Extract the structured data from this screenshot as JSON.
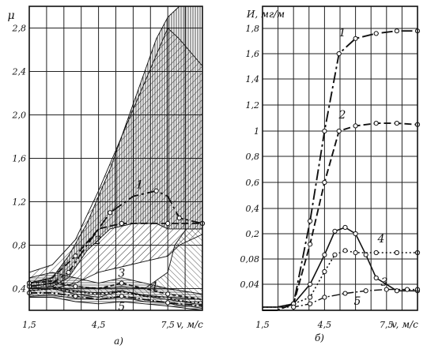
{
  "chart_data": [
    {
      "id": "a",
      "type": "line",
      "panel_label": "а)",
      "ylabel": "μ",
      "xlabel": "v, м/с",
      "ylim": [
        0.2,
        3.0
      ],
      "xlim": [
        1.5,
        9.0
      ],
      "x_ticks": [
        {
          "v": 1.5,
          "label": "1,5"
        },
        {
          "v": 4.5,
          "label": "4,5"
        },
        {
          "v": 7.5,
          "label": "7,5"
        }
      ],
      "y_ticks": [
        {
          "v": 0.4,
          "label": "0,4"
        },
        {
          "v": 0.8,
          "label": "0,8"
        },
        {
          "v": 1.2,
          "label": "1,2"
        },
        {
          "v": 1.6,
          "label": "1,6"
        },
        {
          "v": 2.0,
          "label": "2,0"
        },
        {
          "v": 2.4,
          "label": "2,4"
        },
        {
          "v": 2.8,
          "label": "2,8"
        }
      ],
      "grid": true,
      "series": [
        {
          "name": "1",
          "x": [
            1.5,
            2.5,
            3.2,
            4.0,
            5.0,
            6.0,
            7.0,
            7.5,
            8.0,
            9.0
          ],
          "upper": [
            0.45,
            0.5,
            0.7,
            1.0,
            1.5,
            2.1,
            2.7,
            2.9,
            3.0,
            3.0
          ],
          "mean": [
            0.42,
            0.45,
            0.55,
            0.8,
            1.1,
            1.25,
            1.3,
            1.25,
            1.05,
            1.0
          ],
          "lower": [
            0.4,
            0.42,
            0.5,
            0.75,
            0.95,
            1.0,
            1.0,
            0.95,
            0.95,
            0.95
          ]
        },
        {
          "name": "2",
          "x": [
            1.5,
            2.5,
            3.5,
            4.5,
            5.5,
            6.5,
            7.5,
            8.0,
            9.0
          ],
          "upper": [
            0.55,
            0.62,
            0.85,
            1.3,
            1.8,
            2.3,
            2.8,
            2.7,
            2.45
          ],
          "mean": [
            0.45,
            0.5,
            0.7,
            0.95,
            1.0,
            1.0,
            1.0,
            1.0,
            1.0
          ],
          "lower": [
            0.38,
            0.4,
            0.45,
            0.55,
            0.6,
            0.65,
            0.7,
            0.8,
            0.9
          ]
        },
        {
          "name": "3",
          "x": [
            1.5,
            2.5,
            3.5,
            4.5,
            5.5,
            6.5,
            7.5,
            9.0
          ],
          "upper": [
            0.5,
            0.55,
            0.5,
            0.45,
            0.5,
            0.45,
            0.4,
            0.35
          ],
          "mean": [
            0.45,
            0.47,
            0.42,
            0.4,
            0.45,
            0.4,
            0.35,
            0.3
          ],
          "lower": [
            0.4,
            0.4,
            0.35,
            0.32,
            0.38,
            0.33,
            0.3,
            0.25
          ]
        },
        {
          "name": "4",
          "x": [
            1.5,
            2.5,
            3.5,
            4.5,
            5.5,
            6.5,
            7.5,
            7.8,
            8.3,
            9.0
          ],
          "upper": [
            0.42,
            0.45,
            0.42,
            0.4,
            0.42,
            0.4,
            0.55,
            0.8,
            0.95,
            0.95
          ],
          "mean": [
            0.38,
            0.4,
            0.37,
            0.35,
            0.37,
            0.33,
            0.32,
            0.3,
            0.28,
            0.27
          ],
          "lower": [
            0.33,
            0.34,
            0.31,
            0.3,
            0.32,
            0.28,
            0.27,
            0.25,
            0.24,
            0.22
          ]
        },
        {
          "name": "5",
          "x": [
            1.5,
            2.5,
            3.5,
            4.5,
            5.5,
            6.5,
            7.5,
            9.0
          ],
          "upper": [
            0.4,
            0.42,
            0.38,
            0.36,
            0.38,
            0.34,
            0.32,
            0.3
          ],
          "mean": [
            0.36,
            0.36,
            0.33,
            0.3,
            0.33,
            0.3,
            0.27,
            0.24
          ],
          "lower": [
            0.32,
            0.32,
            0.28,
            0.26,
            0.28,
            0.26,
            0.24,
            0.2
          ]
        }
      ]
    },
    {
      "id": "b",
      "type": "line",
      "panel_label": "б)",
      "ylabel": "И, мг/м",
      "xlabel": "v, м/с",
      "xlim": [
        1.5,
        9.0
      ],
      "x_ticks": [
        {
          "v": 1.5,
          "label": "1,5"
        },
        {
          "v": 4.5,
          "label": "4,5"
        },
        {
          "v": 7.5,
          "label": "7,5"
        }
      ],
      "y_ticks": [
        {
          "v": 0.04,
          "label": "0,04"
        },
        {
          "v": 0.08,
          "label": "0,08"
        },
        {
          "v": 0.2,
          "label": "0,2"
        },
        {
          "v": 0.4,
          "label": "0,4"
        },
        {
          "v": 0.6,
          "label": "0,6"
        },
        {
          "v": 0.8,
          "label": "0,8"
        },
        {
          "v": 1.0,
          "label": "1"
        },
        {
          "v": 1.2,
          "label": "1,2"
        },
        {
          "v": 1.4,
          "label": "1,4"
        },
        {
          "v": 1.6,
          "label": "1,6"
        },
        {
          "v": 1.8,
          "label": "1,8"
        }
      ],
      "grid": true,
      "series": [
        {
          "name": "1",
          "x": [
            1.5,
            2.2,
            3.0,
            3.8,
            4.5,
            5.2,
            6.0,
            7.0,
            8.0,
            9.0
          ],
          "y": [
            0.0,
            0.0,
            0.01,
            0.3,
            1.0,
            1.6,
            1.72,
            1.76,
            1.78,
            1.78
          ]
        },
        {
          "name": "2",
          "x": [
            1.5,
            2.2,
            3.0,
            3.8,
            4.5,
            5.2,
            6.0,
            7.0,
            8.0,
            9.0
          ],
          "y": [
            0.0,
            0.0,
            0.01,
            0.15,
            0.6,
            1.0,
            1.04,
            1.06,
            1.06,
            1.05
          ]
        },
        {
          "name": "3",
          "x": [
            1.5,
            2.2,
            3.0,
            3.8,
            4.5,
            5.0,
            5.5,
            6.0,
            6.5,
            7.0,
            8.0,
            9.0
          ],
          "y": [
            0.005,
            0.005,
            0.01,
            0.04,
            0.1,
            0.22,
            0.25,
            0.2,
            0.1,
            0.05,
            0.03,
            0.03
          ]
        },
        {
          "name": "4",
          "x": [
            1.5,
            2.2,
            3.0,
            3.8,
            4.5,
            5.0,
            5.5,
            6.0,
            7.0,
            8.0,
            9.0
          ],
          "y": [
            0.005,
            0.005,
            0.01,
            0.02,
            0.06,
            0.1,
            0.12,
            0.11,
            0.11,
            0.11,
            0.11
          ]
        },
        {
          "name": "5",
          "x": [
            1.5,
            2.2,
            3.0,
            3.8,
            4.5,
            5.5,
            6.5,
            7.5,
            8.5,
            9.0
          ],
          "y": [
            0.005,
            0.005,
            0.005,
            0.01,
            0.02,
            0.026,
            0.03,
            0.032,
            0.032,
            0.032
          ]
        }
      ]
    }
  ]
}
